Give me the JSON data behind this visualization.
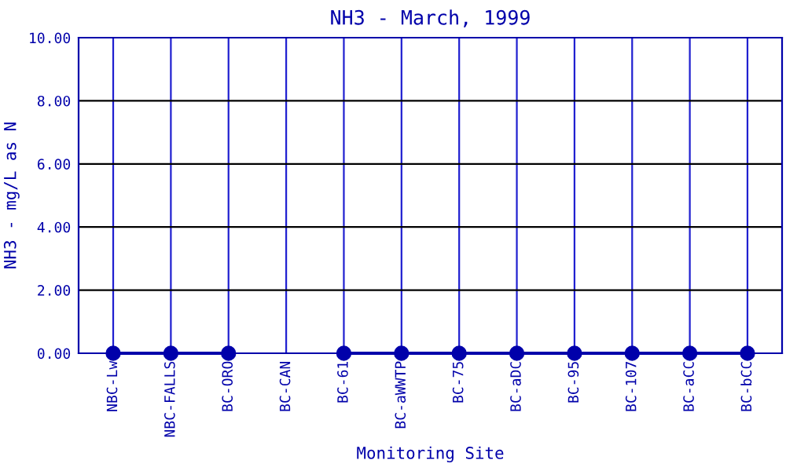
{
  "chart_data": {
    "type": "line",
    "title": "NH3 - March, 1999",
    "xlabel": "Monitoring Site",
    "ylabel": "NH3 - mg/L as N",
    "categories": [
      "NBC-Lw",
      "NBC-FALLS",
      "BC-ORO",
      "BC-CAN",
      "BC-61",
      "BC-aWWTP",
      "BC-75",
      "BC-aDC",
      "BC-95",
      "BC-107",
      "BC-aCC",
      "BC-bCC"
    ],
    "series": [
      {
        "color": "#0000aa",
        "values": [
          0,
          0,
          0,
          null,
          0,
          0,
          0,
          0,
          0,
          0,
          0,
          0
        ]
      }
    ],
    "ylim": [
      0,
      10
    ],
    "yticks": [
      {
        "value": 0,
        "label": "0.00"
      },
      {
        "value": 2,
        "label": "2.00"
      },
      {
        "value": 4,
        "label": "4.00"
      },
      {
        "value": 6,
        "label": "6.00"
      },
      {
        "value": 8,
        "label": "8.00"
      },
      {
        "value": 10,
        "label": "10.00"
      }
    ],
    "grid": true,
    "marker": "circle",
    "line_style": "solid"
  }
}
